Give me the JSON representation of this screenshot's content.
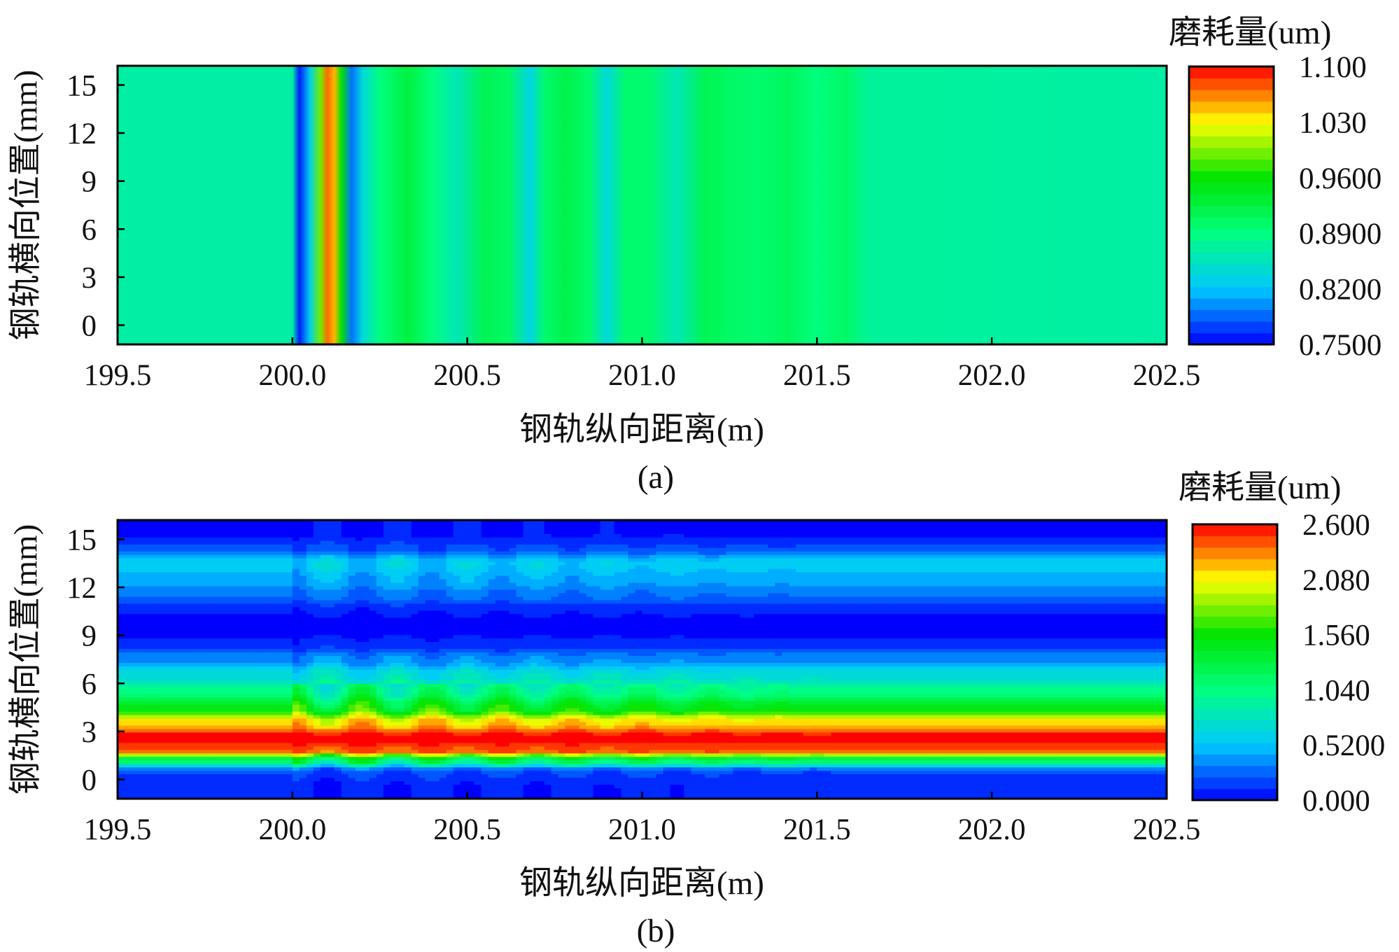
{
  "figure": {
    "panels": [
      {
        "label": "(a)",
        "xlabel": "钢轨纵向距离(m)",
        "ylabel": "钢轨横向位置(mm)",
        "colorbar_title": "磨耗量(um)"
      },
      {
        "label": "(b)",
        "xlabel": "钢轨纵向距离(m)",
        "ylabel": "钢轨横向位置(mm)",
        "colorbar_title": "磨耗量(um)"
      }
    ]
  },
  "chart_data": [
    {
      "type": "heatmap",
      "title": "",
      "label": "(a)",
      "xlabel": "钢轨纵向距离(m)",
      "ylabel": "钢轨横向位置(mm)",
      "colorbar_title": "磨耗量(um)",
      "xlim": [
        199.5,
        202.5
      ],
      "ylim": [
        -1.2,
        16.2
      ],
      "x_ticks": [
        "199.5",
        "200.0",
        "200.5",
        "201.0",
        "201.5",
        "202.0",
        "202.5"
      ],
      "y_ticks": [
        "0",
        "3",
        "6",
        "9",
        "12",
        "15"
      ],
      "colorbar_ticks": [
        "0.7500",
        "0.8200",
        "0.8900",
        "0.9600",
        "1.030",
        "1.100"
      ],
      "clim": [
        0.75,
        1.1
      ],
      "colormap": [
        "#0000ff",
        "#00c8ff",
        "#00ff80",
        "#00e400",
        "#ffff00",
        "#ff0000"
      ],
      "x": [
        199.5,
        200.0,
        200.02,
        200.05,
        200.08,
        200.1,
        200.12,
        200.14,
        200.17,
        200.2,
        200.25,
        200.33,
        200.4,
        200.47,
        200.55,
        200.62,
        200.68,
        200.72,
        200.78,
        200.85,
        200.9,
        200.95,
        201.02,
        201.1,
        201.18,
        201.25,
        201.33,
        201.42,
        201.5,
        201.58,
        201.65,
        202.5
      ],
      "values": [
        0.87,
        0.87,
        0.76,
        0.83,
        0.99,
        1.07,
        1.05,
        0.96,
        0.79,
        0.84,
        0.89,
        0.925,
        0.89,
        0.86,
        0.915,
        0.905,
        0.835,
        0.9,
        0.92,
        0.9,
        0.84,
        0.9,
        0.9,
        0.86,
        0.915,
        0.905,
        0.9,
        0.91,
        0.89,
        0.905,
        0.875,
        0.87
      ],
      "uniform_in_y": true
    },
    {
      "type": "heatmap",
      "title": "",
      "label": "(b)",
      "xlabel": "钢轨纵向距离(m)",
      "ylabel": "钢轨横向位置(mm)",
      "colorbar_title": "磨耗量(um)",
      "xlim": [
        199.5,
        202.5
      ],
      "ylim": [
        -1.2,
        16.2
      ],
      "x_ticks": [
        "199.5",
        "200.0",
        "200.5",
        "201.0",
        "201.5",
        "202.0",
        "202.5"
      ],
      "y_ticks": [
        "0",
        "3",
        "6",
        "9",
        "12",
        "15"
      ],
      "colorbar_ticks": [
        "0.000",
        "0.5200",
        "1.040",
        "1.560",
        "2.080",
        "2.600"
      ],
      "clim": [
        0,
        2.6
      ],
      "colormap": [
        "#0000ff",
        "#00c8ff",
        "#00ff80",
        "#00e400",
        "#ffff00",
        "#ff0000"
      ],
      "y": [
        -1.2,
        -0.5,
        0.5,
        1.2,
        1.8,
        2.6,
        3.6,
        4.5,
        5.5,
        6.5,
        7.5,
        8.5,
        9.5,
        10.5,
        11.5,
        12.5,
        13.5,
        14.5,
        15.3,
        16.2
      ],
      "base_profile": [
        0.12,
        0.12,
        0.22,
        1.2,
        2.4,
        2.55,
        2.1,
        1.45,
        1.05,
        0.72,
        0.4,
        0.14,
        0.04,
        0.12,
        0.33,
        0.48,
        0.6,
        0.22,
        0.1,
        0.1
      ],
      "ripple": {
        "x_start": 200.0,
        "x_end": 201.3,
        "wavelength": 0.2,
        "amplitude": 0.35
      }
    }
  ]
}
